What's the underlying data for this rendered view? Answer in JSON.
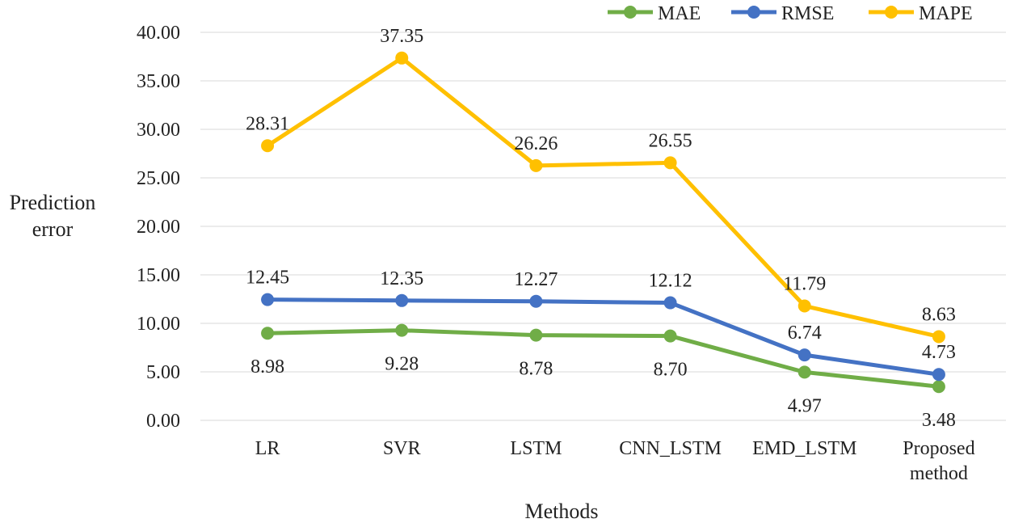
{
  "chart_data": {
    "type": "line",
    "categories": [
      "LR",
      "SVR",
      "LSTM",
      "CNN_LSTM",
      "EMD_LSTM",
      "Proposed method"
    ],
    "category_lines": [
      [
        "LR"
      ],
      [
        "SVR"
      ],
      [
        "LSTM"
      ],
      [
        "CNN_LSTM"
      ],
      [
        "EMD_LSTM"
      ],
      [
        "Proposed",
        "method"
      ]
    ],
    "series": [
      {
        "name": "MAE",
        "color": "#70AD47",
        "values": [
          8.98,
          9.28,
          8.78,
          8.7,
          4.97,
          3.48
        ],
        "labels": [
          "8.98",
          "9.28",
          "8.78",
          "8.70",
          "4.97",
          "3.48"
        ]
      },
      {
        "name": "RMSE",
        "color": "#4472C4",
        "values": [
          12.45,
          12.35,
          12.27,
          12.12,
          6.74,
          4.73
        ],
        "labels": [
          "12.45",
          "12.35",
          "12.27",
          "12.12",
          "6.74",
          "4.73"
        ]
      },
      {
        "name": "MAPE",
        "color": "#FFC000",
        "values": [
          28.31,
          37.35,
          26.26,
          26.55,
          11.79,
          8.63
        ],
        "labels": [
          "28.31",
          "37.35",
          "26.26",
          "26.55",
          "11.79",
          "8.63"
        ]
      }
    ],
    "ylabel": "Prediction error",
    "ylabel_lines": [
      "Prediction",
      "error"
    ],
    "xlabel": "Methods",
    "ylim": [
      0,
      40
    ],
    "yticks": [
      "0.00",
      "5.00",
      "10.00",
      "15.00",
      "20.00",
      "25.00",
      "30.00",
      "35.00",
      "40.00"
    ],
    "grid": true,
    "legend": "top-right",
    "title": ""
  }
}
